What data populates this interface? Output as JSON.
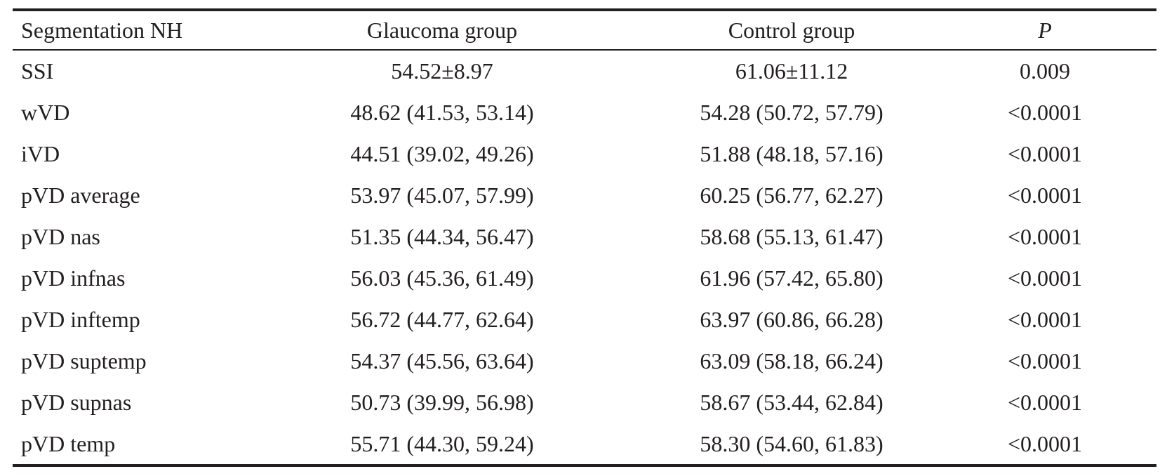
{
  "table": {
    "headers": [
      "Segmentation NH",
      "Glaucoma group",
      "Control group",
      "P"
    ],
    "rows": [
      [
        "SSI",
        "54.52±8.97",
        "61.06±11.12",
        "0.009"
      ],
      [
        "wVD",
        "48.62 (41.53, 53.14)",
        "54.28 (50.72, 57.79)",
        "<0.0001"
      ],
      [
        "iVD",
        "44.51 (39.02, 49.26)",
        "51.88 (48.18, 57.16)",
        "<0.0001"
      ],
      [
        "pVD average",
        "53.97 (45.07, 57.99)",
        "60.25 (56.77, 62.27)",
        "<0.0001"
      ],
      [
        "pVD nas",
        "51.35 (44.34, 56.47)",
        "58.68 (55.13, 61.47)",
        "<0.0001"
      ],
      [
        "pVD infnas",
        "56.03 (45.36, 61.49)",
        "61.96 (57.42, 65.80)",
        "<0.0001"
      ],
      [
        "pVD inftemp",
        "56.72 (44.77, 62.64)",
        "63.97 (60.86, 66.28)",
        "<0.0001"
      ],
      [
        "pVD suptemp",
        "54.37 (45.56, 63.64)",
        "63.09 (58.18, 66.24)",
        "<0.0001"
      ],
      [
        "pVD supnas",
        "50.73 (39.99, 56.98)",
        "58.67 (53.44, 62.84)",
        "<0.0001"
      ],
      [
        "pVD temp",
        "55.71 (44.30, 59.24)",
        "58.30 (54.60, 61.83)",
        "<0.0001"
      ]
    ]
  }
}
